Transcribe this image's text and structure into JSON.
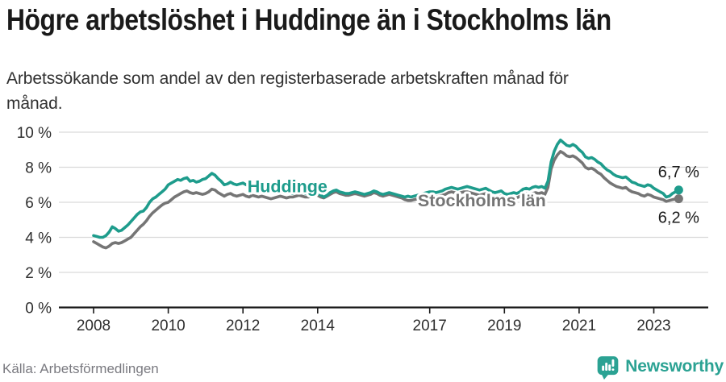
{
  "header": {
    "title": "Högre arbetslöshet i Huddinge än i Stockholms län",
    "subtitle_line1": "Arbetssökande som andel av den registerbaserade arbetskraften månad för",
    "subtitle_line2": "månad."
  },
  "chart_data": {
    "type": "line",
    "unit": "%",
    "frequency": "monthly",
    "x_start": "2008-01",
    "x_end": "2023-09",
    "ylim": [
      0,
      10
    ],
    "grid": "horizontal",
    "colors": {
      "grid": "#d9d9d9",
      "axis": "#1a1a1a"
    },
    "y_ticks": [
      {
        "value": 10,
        "label": "10 %"
      },
      {
        "value": 8,
        "label": "8 %"
      },
      {
        "value": 6,
        "label": "6 %"
      },
      {
        "value": 4,
        "label": "4 %"
      },
      {
        "value": 2,
        "label": "2 %"
      },
      {
        "value": 0,
        "label": "0 %"
      }
    ],
    "x_ticks": [
      {
        "value": 2008,
        "label": "2008"
      },
      {
        "value": 2010,
        "label": "2010"
      },
      {
        "value": 2012,
        "label": "2012"
      },
      {
        "value": 2014,
        "label": "2014"
      },
      {
        "value": 2017,
        "label": "2017"
      },
      {
        "value": 2019,
        "label": "2019"
      },
      {
        "value": 2021,
        "label": "2021"
      },
      {
        "value": 2023,
        "label": "2023"
      }
    ],
    "series": [
      {
        "id": "stockholms-lan",
        "name": "Stockholms län",
        "color": "#757575",
        "label": {
          "text": "Stockholms län",
          "year": 2016.68,
          "value": 5.78
        },
        "end_label": {
          "text": "6,2 %",
          "position": "below"
        },
        "values": [
          3.75,
          3.65,
          3.55,
          3.45,
          3.4,
          3.5,
          3.65,
          3.7,
          3.65,
          3.7,
          3.8,
          3.9,
          4.0,
          4.2,
          4.4,
          4.6,
          4.75,
          4.95,
          5.2,
          5.4,
          5.55,
          5.7,
          5.85,
          5.95,
          6.0,
          6.15,
          6.3,
          6.4,
          6.5,
          6.6,
          6.65,
          6.55,
          6.5,
          6.55,
          6.5,
          6.45,
          6.5,
          6.6,
          6.75,
          6.7,
          6.55,
          6.45,
          6.35,
          6.45,
          6.5,
          6.4,
          6.35,
          6.4,
          6.45,
          6.35,
          6.3,
          6.4,
          6.35,
          6.3,
          6.35,
          6.3,
          6.25,
          6.2,
          6.25,
          6.3,
          6.35,
          6.3,
          6.25,
          6.3,
          6.3,
          6.35,
          6.4,
          6.35,
          6.3,
          6.3,
          6.35,
          6.4,
          6.4,
          6.3,
          6.25,
          6.35,
          6.45,
          6.55,
          6.6,
          6.5,
          6.45,
          6.4,
          6.4,
          6.45,
          6.5,
          6.45,
          6.4,
          6.35,
          6.4,
          6.45,
          6.55,
          6.5,
          6.4,
          6.35,
          6.4,
          6.45,
          6.4,
          6.35,
          6.3,
          6.25,
          6.15,
          6.1,
          6.1,
          6.15,
          6.2,
          6.25,
          6.3,
          6.35,
          6.35,
          6.35,
          6.3,
          6.35,
          6.4,
          6.45,
          6.55,
          6.6,
          6.55,
          6.5,
          6.55,
          6.6,
          6.6,
          6.55,
          6.5,
          6.45,
          6.4,
          6.45,
          6.5,
          6.4,
          6.3,
          6.25,
          6.3,
          6.35,
          6.25,
          6.2,
          6.25,
          6.3,
          6.25,
          6.35,
          6.45,
          6.5,
          6.45,
          6.5,
          6.55,
          6.5,
          6.55,
          6.45,
          6.85,
          7.9,
          8.4,
          8.7,
          8.9,
          8.8,
          8.65,
          8.6,
          8.65,
          8.55,
          8.4,
          8.25,
          8.0,
          7.9,
          7.95,
          7.85,
          7.7,
          7.6,
          7.4,
          7.25,
          7.1,
          7.0,
          6.9,
          6.85,
          6.8,
          6.85,
          6.7,
          6.6,
          6.55,
          6.5,
          6.4,
          6.35,
          6.45,
          6.4,
          6.3,
          6.25,
          6.2,
          6.15,
          6.05,
          6.1,
          6.15,
          6.2,
          6.2
        ]
      },
      {
        "id": "huddinge",
        "name": "Huddinge",
        "color": "#1e9c8c",
        "label": {
          "text": "Huddinge",
          "year": 2012.12,
          "value": 6.58
        },
        "end_label": {
          "text": "6,7 %",
          "position": "above"
        },
        "values": [
          4.1,
          4.05,
          4.0,
          4.0,
          4.1,
          4.3,
          4.6,
          4.5,
          4.35,
          4.4,
          4.55,
          4.7,
          4.9,
          5.1,
          5.3,
          5.45,
          5.5,
          5.7,
          6.0,
          6.2,
          6.3,
          6.45,
          6.6,
          6.75,
          7.0,
          7.1,
          7.2,
          7.3,
          7.25,
          7.35,
          7.4,
          7.2,
          7.25,
          7.15,
          7.2,
          7.3,
          7.35,
          7.5,
          7.65,
          7.55,
          7.35,
          7.2,
          7.0,
          7.05,
          7.15,
          7.05,
          7.0,
          7.05,
          7.1,
          7.0,
          6.95,
          7.05,
          7.0,
          6.9,
          6.95,
          6.9,
          6.8,
          6.75,
          6.7,
          6.7,
          6.7,
          6.65,
          6.6,
          6.55,
          6.5,
          6.55,
          6.6,
          6.55,
          6.5,
          6.45,
          6.45,
          6.5,
          6.5,
          6.4,
          6.3,
          6.4,
          6.55,
          6.65,
          6.7,
          6.6,
          6.55,
          6.5,
          6.5,
          6.55,
          6.6,
          6.55,
          6.5,
          6.45,
          6.5,
          6.55,
          6.65,
          6.6,
          6.5,
          6.45,
          6.5,
          6.55,
          6.5,
          6.45,
          6.4,
          6.35,
          6.3,
          6.35,
          6.3,
          6.35,
          6.4,
          6.45,
          6.5,
          6.55,
          6.6,
          6.6,
          6.55,
          6.6,
          6.65,
          6.75,
          6.8,
          6.85,
          6.8,
          6.75,
          6.8,
          6.85,
          6.9,
          6.85,
          6.8,
          6.75,
          6.7,
          6.75,
          6.8,
          6.7,
          6.6,
          6.55,
          6.6,
          6.65,
          6.5,
          6.45,
          6.5,
          6.55,
          6.5,
          6.6,
          6.75,
          6.8,
          6.75,
          6.85,
          6.9,
          6.85,
          6.9,
          6.8,
          7.2,
          8.3,
          8.9,
          9.3,
          9.55,
          9.4,
          9.25,
          9.2,
          9.3,
          9.2,
          9.0,
          8.85,
          8.6,
          8.5,
          8.55,
          8.45,
          8.3,
          8.2,
          8.0,
          7.85,
          7.75,
          7.6,
          7.5,
          7.45,
          7.4,
          7.45,
          7.3,
          7.15,
          7.1,
          7.0,
          6.95,
          6.9,
          7.0,
          6.95,
          6.8,
          6.7,
          6.6,
          6.5,
          6.3,
          6.35,
          6.5,
          6.6,
          6.7
        ]
      }
    ]
  },
  "footer": {
    "source": "Källa: Arbetsförmedlingen",
    "brand": "Newsworthy"
  }
}
